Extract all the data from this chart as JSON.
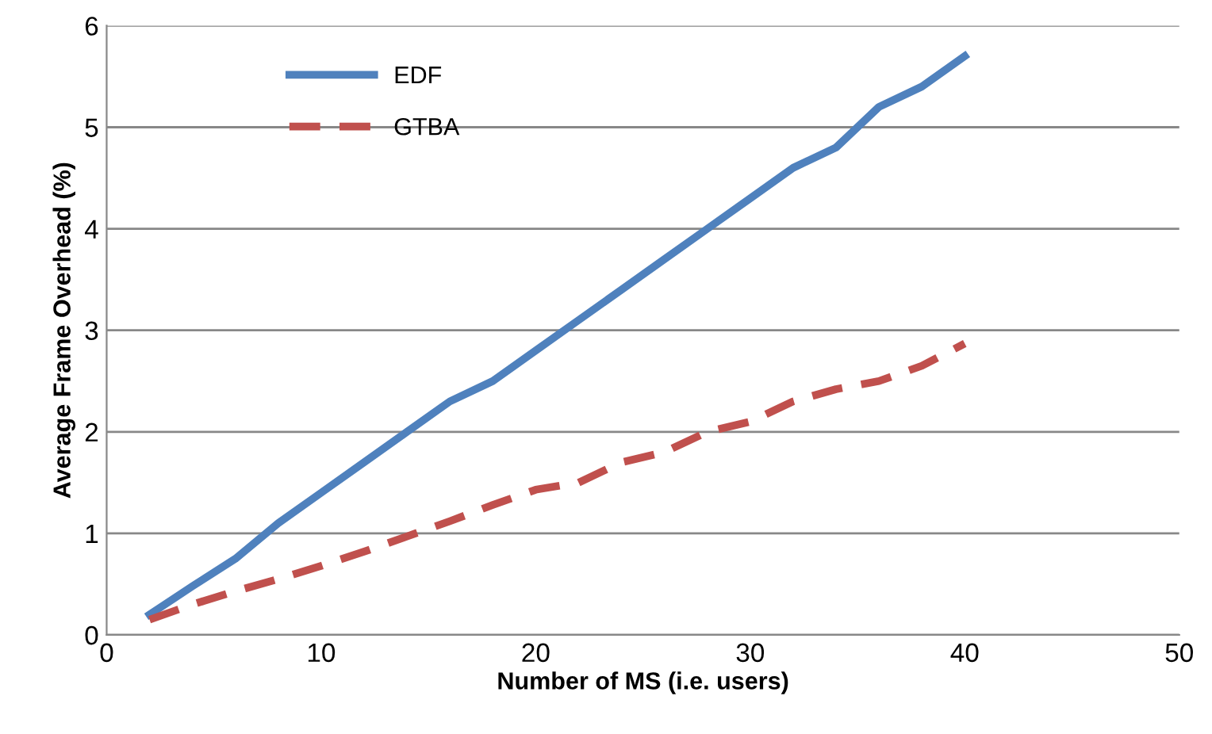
{
  "chart_data": {
    "type": "line",
    "xlabel": "Number of MS (i.e. users)",
    "ylabel": "Average Frame Overhead (%)",
    "x": [
      2,
      4,
      6,
      8,
      10,
      12,
      14,
      16,
      18,
      20,
      22,
      24,
      26,
      28,
      30,
      32,
      34,
      36,
      38,
      40
    ],
    "series": [
      {
        "name": "EDF",
        "color": "#4f81bd",
        "line_style": "solid",
        "values": [
          0.2,
          0.48,
          0.75,
          1.1,
          1.4,
          1.7,
          2.0,
          2.3,
          2.5,
          2.8,
          3.1,
          3.4,
          3.7,
          4.0,
          4.3,
          4.6,
          4.8,
          5.2,
          5.4,
          5.7
        ]
      },
      {
        "name": "GTBA",
        "color": "#c0504d",
        "line_style": "dashed",
        "values": [
          0.15,
          0.3,
          0.43,
          0.55,
          0.68,
          0.82,
          0.97,
          1.12,
          1.28,
          1.43,
          1.5,
          1.7,
          1.8,
          2.0,
          2.1,
          2.3,
          2.42,
          2.5,
          2.65,
          2.87
        ]
      }
    ],
    "xlim": [
      0,
      50
    ],
    "xticks": [
      0,
      10,
      20,
      30,
      40,
      50
    ],
    "ylim": [
      0,
      6
    ],
    "yticks": [
      0,
      1,
      2,
      3,
      4,
      5,
      6
    ],
    "grid": "y",
    "legend": "top left",
    "marker": "none"
  }
}
